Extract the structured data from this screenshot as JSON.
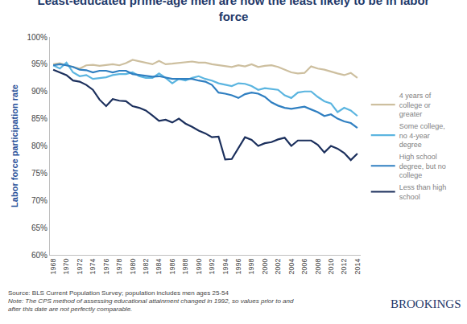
{
  "chart_data": {
    "type": "line",
    "title": "Least-educated prime-age men are now the least likely to be in labor force",
    "y_label": "Labor force participation rate",
    "annotations": [
      "Source: BLS Current Population Survey; population includes men ages 25-54",
      "Note: The CPS method of assessing educational attainment changed in 1992, so values prior to and after this date are not perfectly comparable.",
      "BROOKINGS"
    ],
    "x": [
      1968,
      1969,
      1970,
      1971,
      1972,
      1973,
      1974,
      1975,
      1976,
      1977,
      1978,
      1979,
      1980,
      1981,
      1982,
      1983,
      1984,
      1985,
      1986,
      1987,
      1988,
      1989,
      1990,
      1991,
      1992,
      1993,
      1994,
      1995,
      1996,
      1997,
      1998,
      1999,
      2000,
      2001,
      2002,
      2003,
      2004,
      2005,
      2006,
      2007,
      2008,
      2009,
      2010,
      2011,
      2012,
      2013,
      2014
    ],
    "series": [
      {
        "name": "4 years of college or greater",
        "color": "#cdbf9f",
        "values": [
          95,
          95.2,
          94.8,
          94.5,
          94.2,
          94.8,
          94.9,
          94.7,
          94.8,
          95,
          94.8,
          95.2,
          95.8,
          95.5,
          95.2,
          95,
          95.6,
          95,
          95.1,
          95.2,
          95.4,
          95.5,
          95.3,
          95.3,
          95,
          94.8,
          94.7,
          94.5,
          94.8,
          94.6,
          95,
          94.5,
          94.7,
          94.8,
          94.5,
          94,
          93.5,
          93.3,
          93.4,
          94.6,
          94.2,
          94,
          93.6,
          93.3,
          93,
          93.4,
          92.5
        ]
      },
      {
        "name": "Some college, no 4-year degree",
        "color": "#5bb5e0",
        "values": [
          94.8,
          94.2,
          95.3,
          93.5,
          92.8,
          93,
          92.3,
          92.5,
          92.6,
          93,
          93.2,
          93.2,
          93.5,
          92.8,
          92.5,
          92.5,
          93.3,
          92.5,
          91.5,
          92.3,
          92,
          92.5,
          92.8,
          92.3,
          92,
          91.5,
          91.2,
          91,
          91.5,
          91.4,
          91,
          90.3,
          90.6,
          90.5,
          90.3,
          89.3,
          88.8,
          89.8,
          90,
          90,
          89,
          88.2,
          87.8,
          86.2,
          87,
          86.5,
          85.5
        ]
      },
      {
        "name": "High school degree, but no college",
        "color": "#2f7fc1",
        "values": [
          94.8,
          95,
          94.8,
          94.5,
          94,
          93.9,
          93.5,
          93.8,
          93.8,
          93.5,
          93.8,
          93.8,
          93.2,
          93,
          92.8,
          92.7,
          92.8,
          92.5,
          92.3,
          92.3,
          92.3,
          92.3,
          92,
          91.8,
          91.2,
          89.8,
          89.6,
          89.3,
          88.8,
          89.5,
          89.8,
          89.6,
          89,
          88,
          87.4,
          87,
          86.8,
          87,
          87.2,
          86.7,
          86.2,
          85.5,
          85.8,
          85,
          84.5,
          84.2,
          83.3
        ]
      },
      {
        "name": "Less than high school",
        "color": "#1b2f5c",
        "values": [
          94,
          93.5,
          93,
          92,
          91.8,
          91.2,
          90.3,
          88.5,
          87.3,
          88.6,
          88.3,
          88.2,
          87.3,
          87,
          86.5,
          85.6,
          84.6,
          84.8,
          84.3,
          85,
          84.1,
          83.5,
          82.8,
          82.3,
          81.6,
          81.7,
          77.5,
          77.6,
          79.5,
          81.6,
          81.1,
          80,
          80.5,
          80.7,
          81.2,
          81.5,
          80,
          81,
          81,
          81,
          80.2,
          78.8,
          80,
          79.5,
          78.7,
          77.4,
          78.6
        ]
      }
    ],
    "xlim": [
      1967.5,
      2014.5
    ],
    "xticks": [
      1968,
      1970,
      1972,
      1974,
      1976,
      1978,
      1980,
      1982,
      1984,
      1986,
      1988,
      1990,
      1992,
      1994,
      1996,
      1998,
      2000,
      2002,
      2004,
      2006,
      2008,
      2010,
      2012,
      2014
    ],
    "ylim": [
      60,
      100
    ],
    "yticks": [
      {
        "value": 60,
        "label": "60%"
      },
      {
        "value": 65,
        "label": "65%"
      },
      {
        "value": 70,
        "label": "70%"
      },
      {
        "value": 75,
        "label": "75%"
      },
      {
        "value": 80,
        "label": "80%"
      },
      {
        "value": 85,
        "label": "85%"
      },
      {
        "value": 90,
        "label": "90%"
      },
      {
        "value": 95,
        "label": "95%"
      },
      {
        "value": 100,
        "label": "100%"
      }
    ],
    "grid": false,
    "legend": "right"
  }
}
